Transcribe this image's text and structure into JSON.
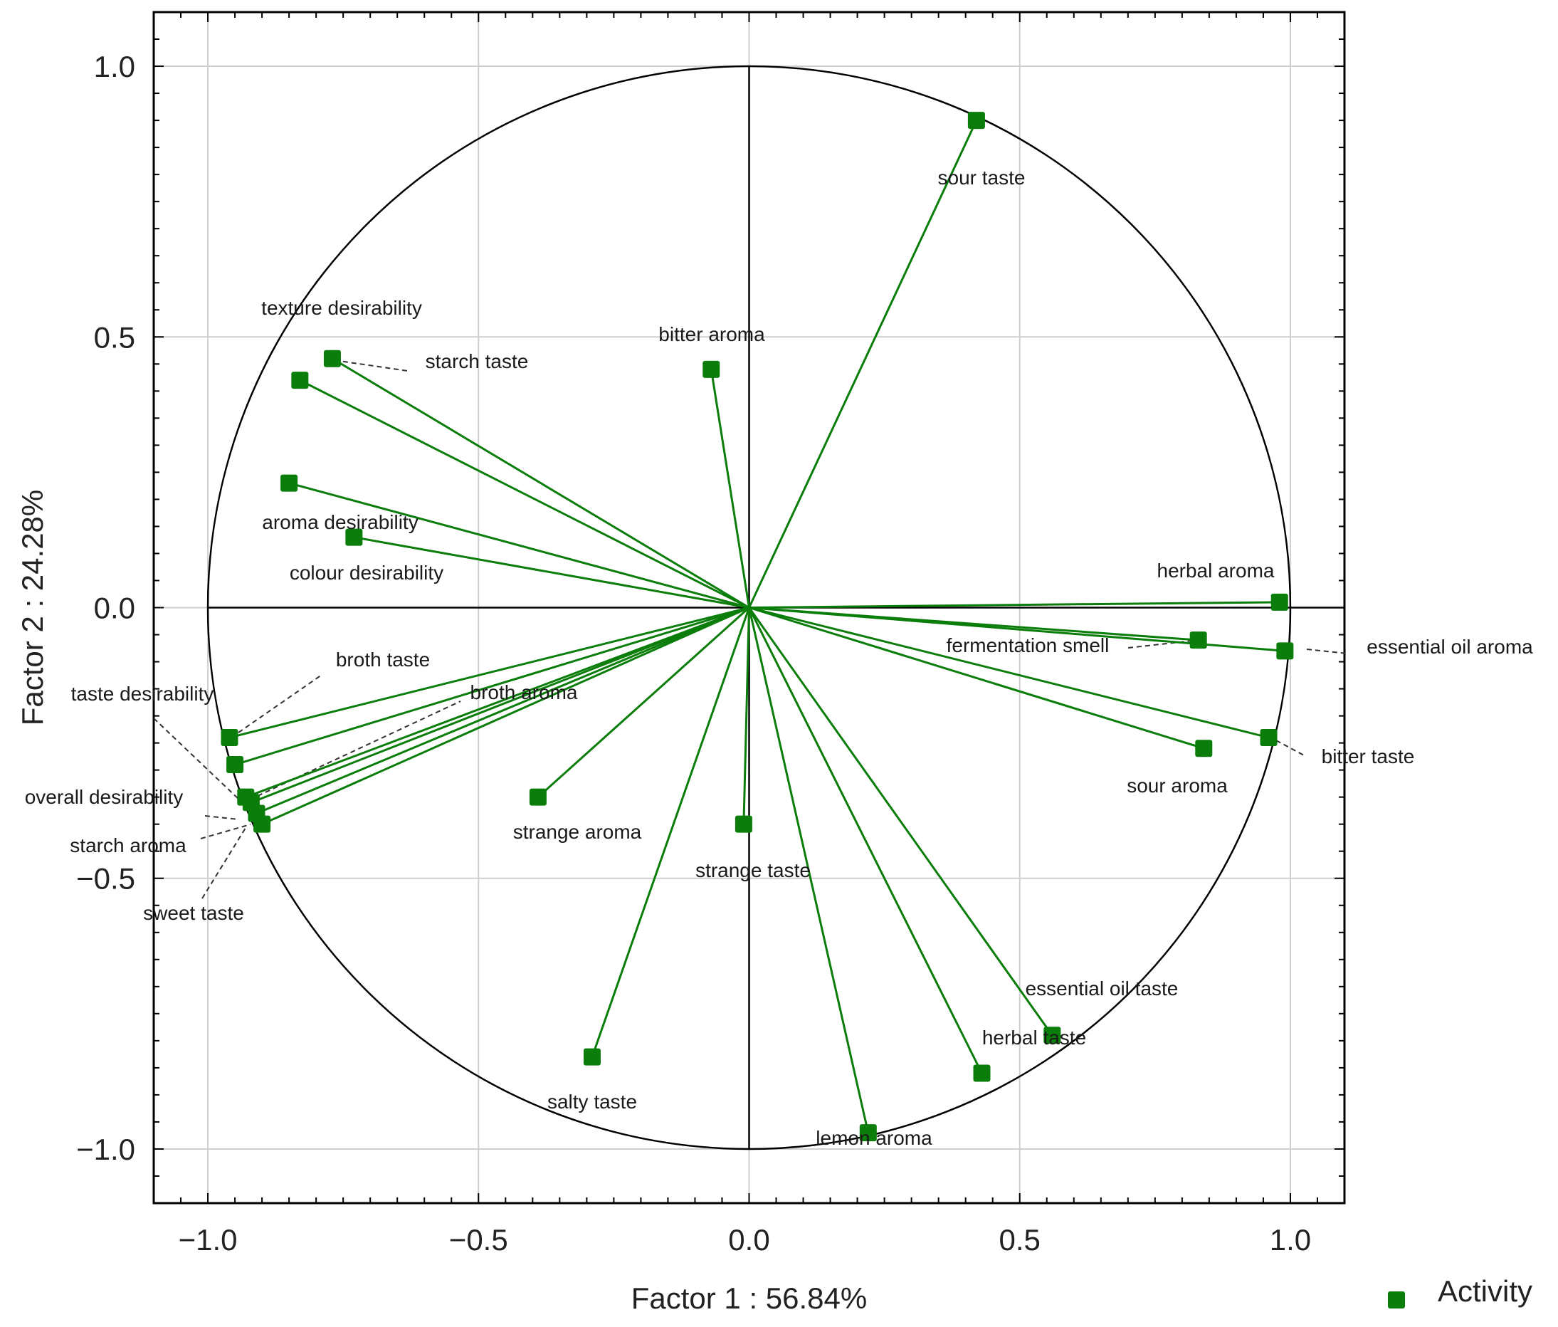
{
  "chart_data": {
    "type": "scatter",
    "subtype": "pca-correlation-circle",
    "xlabel": "Factor 1 : 56.84%",
    "ylabel": "Factor 2 : 24.28%",
    "xlim": [
      -1.1,
      1.1
    ],
    "ylim": [
      -1.1,
      1.1
    ],
    "xticks": [
      -1.0,
      -0.5,
      0.0,
      0.5,
      1.0
    ],
    "yticks": [
      -1.0,
      -0.5,
      0.0,
      0.5,
      1.0
    ],
    "xtick_labels": [
      "−1.0",
      "−0.5",
      "0.0",
      "0.5",
      "1.0"
    ],
    "ytick_labels": [
      "−1.0",
      "−0.5",
      "0.0",
      "0.5",
      "1.0"
    ],
    "grid": true,
    "unit_circle": true,
    "legend": {
      "label": "Activity",
      "position": "bottom-right"
    },
    "colors": {
      "series": "#0a7d0a",
      "marker": "#0a7d0a",
      "axis": "#000000",
      "grid": "#cfcfcf",
      "leader": "#333333"
    },
    "points": [
      {
        "label": "sour taste",
        "x": 0.42,
        "y": 0.9
      },
      {
        "label": "bitter aroma",
        "x": -0.07,
        "y": 0.44
      },
      {
        "label": "texture desirability",
        "x": -0.83,
        "y": 0.42
      },
      {
        "label": "starch taste",
        "x": -0.77,
        "y": 0.46
      },
      {
        "label": "aroma desirability",
        "x": -0.85,
        "y": 0.23
      },
      {
        "label": "colour desirability",
        "x": -0.73,
        "y": 0.13
      },
      {
        "label": "herbal aroma",
        "x": 0.98,
        "y": 0.01
      },
      {
        "label": "fermentation smell",
        "x": 0.83,
        "y": -0.06
      },
      {
        "label": "essential oil aroma",
        "x": 0.99,
        "y": -0.08
      },
      {
        "label": "bitter taste",
        "x": 0.96,
        "y": -0.24
      },
      {
        "label": "sour aroma",
        "x": 0.84,
        "y": -0.26
      },
      {
        "label": "broth taste",
        "x": -0.96,
        "y": -0.24
      },
      {
        "label": "taste desirability",
        "x": -0.95,
        "y": -0.29
      },
      {
        "label": "broth aroma",
        "x": -0.93,
        "y": -0.35
      },
      {
        "label": "overall desirability",
        "x": -0.92,
        "y": -0.36
      },
      {
        "label": "starch aroma",
        "x": -0.91,
        "y": -0.38
      },
      {
        "label": "sweet taste",
        "x": -0.9,
        "y": -0.4
      },
      {
        "label": "strange aroma",
        "x": -0.39,
        "y": -0.35
      },
      {
        "label": "strange taste",
        "x": -0.01,
        "y": -0.4
      },
      {
        "label": "salty taste",
        "x": -0.29,
        "y": -0.83
      },
      {
        "label": "essential oil taste",
        "x": 0.56,
        "y": -0.79
      },
      {
        "label": "herbal taste",
        "x": 0.43,
        "y": -0.86
      },
      {
        "label": "lemon aroma",
        "x": 0.22,
        "y": -0.97
      }
    ]
  }
}
